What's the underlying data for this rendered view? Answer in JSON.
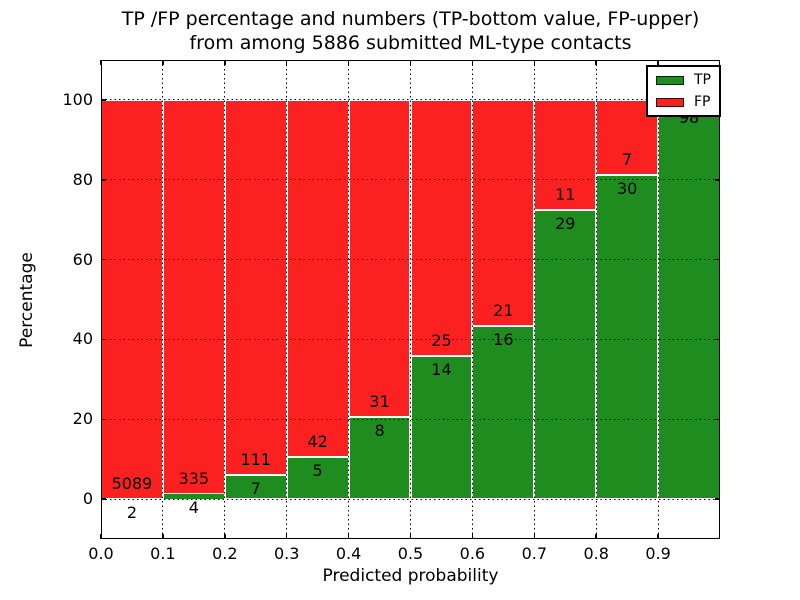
{
  "figure": {
    "title_line1": "TP /FP percentage and numbers (TP-bottom value, FP-upper)",
    "title_line2": "from among 5886 submitted ML-type contacts",
    "xlabel": "Predicted probability",
    "ylabel": "Percentage"
  },
  "legend": {
    "position": "upper-right",
    "items": [
      {
        "label": "TP",
        "color": "#1e8c1e"
      },
      {
        "label": "FP",
        "color": "#fc2121"
      }
    ]
  },
  "chart_data": {
    "type": "bar",
    "subtype": "stacked-100-percent",
    "title": "TP /FP percentage and numbers (TP-bottom value, FP-upper) from among 5886 submitted ML-type contacts",
    "xlabel": "Predicted probability",
    "ylabel": "Percentage",
    "total_contacts": 5886,
    "bin_width": 0.1,
    "bin_starts": [
      0.0,
      0.1,
      0.2,
      0.3,
      0.4,
      0.5,
      0.6,
      0.7,
      0.8,
      0.9
    ],
    "series": [
      {
        "name": "TP",
        "color": "#1e8c1e",
        "counts": [
          2,
          4,
          7,
          5,
          8,
          14,
          16,
          29,
          30,
          98
        ],
        "labels": [
          "2",
          "4",
          "7",
          "5",
          "8",
          "14",
          "16",
          "29",
          "30",
          "98"
        ]
      },
      {
        "name": "FP",
        "color": "#fc2121",
        "counts": [
          5089,
          335,
          111,
          42,
          31,
          25,
          21,
          11,
          7,
          1
        ],
        "labels": [
          "5089",
          "335",
          "111",
          "42",
          "31",
          "25",
          "21",
          "11",
          "7",
          ""
        ]
      }
    ],
    "fp_count_last_bin_estimated_from_bar_height": true,
    "tp_percent": [
      0.04,
      1.18,
      5.93,
      10.64,
      20.51,
      35.9,
      43.24,
      72.5,
      81.08,
      98.99
    ],
    "x_tick_labels": [
      "0.0",
      "0.1",
      "0.2",
      "0.3",
      "0.4",
      "0.5",
      "0.6",
      "0.7",
      "0.8",
      "0.9"
    ],
    "y_tick_values": [
      0,
      20,
      40,
      60,
      80,
      100
    ],
    "xlim": [
      0.0,
      1.0
    ],
    "ylim": [
      -10,
      110
    ],
    "grid": {
      "style": "dotted",
      "color": "#000000"
    },
    "legend_position": "upper-right"
  }
}
